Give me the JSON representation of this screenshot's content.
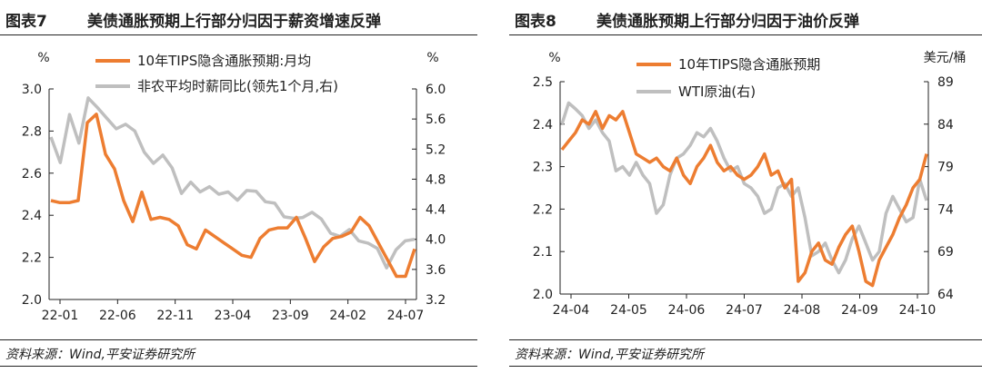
{
  "colors": {
    "orange": "#ED7D31",
    "gray": "#BFBFBF"
  },
  "source": "资料来源：Wind,平安证券研究所",
  "chart_data": [
    {
      "type": "line",
      "figure_label": "图表7",
      "title": "美债通胀预期上行部分归因于薪资增速反弹",
      "left_unit": "%",
      "right_unit": "%",
      "x_ticks": [
        "22-01",
        "22-06",
        "22-11",
        "23-04",
        "23-09",
        "24-02",
        "24-07"
      ],
      "y_left": {
        "min": 2.0,
        "max": 3.0,
        "ticks": [
          "2.0",
          "2.2",
          "2.4",
          "2.6",
          "2.8",
          "3.0"
        ]
      },
      "y_right": {
        "min": 3.2,
        "max": 6.0,
        "ticks": [
          "3.2",
          "3.6",
          "4.0",
          "4.4",
          "4.8",
          "5.2",
          "5.6",
          "6.0"
        ]
      },
      "series": [
        {
          "name": "10年TIPS隐含通胀预期:月均",
          "axis": "left",
          "color": "#ED7D31",
          "values": [
            2.47,
            2.46,
            2.46,
            2.47,
            2.84,
            2.88,
            2.69,
            2.62,
            2.47,
            2.37,
            2.51,
            2.38,
            2.39,
            2.38,
            2.35,
            2.26,
            2.24,
            2.33,
            2.3,
            2.27,
            2.24,
            2.21,
            2.2,
            2.29,
            2.33,
            2.34,
            2.34,
            2.39,
            2.29,
            2.18,
            2.25,
            2.29,
            2.3,
            2.32,
            2.39,
            2.35,
            2.27,
            2.19,
            2.11,
            2.11,
            2.24
          ]
        },
        {
          "name": "非农平均时薪同比(领先1个月,右)",
          "axis": "right",
          "color": "#BFBFBF",
          "values": [
            5.36,
            5.02,
            5.66,
            5.28,
            5.88,
            5.75,
            5.61,
            5.47,
            5.53,
            5.44,
            5.16,
            5.01,
            5.12,
            4.95,
            4.61,
            4.76,
            4.63,
            4.7,
            4.6,
            4.63,
            4.52,
            4.65,
            4.64,
            4.5,
            4.48,
            4.3,
            4.28,
            4.29,
            4.36,
            4.27,
            4.08,
            4.04,
            4.13,
            3.98,
            3.95,
            3.88,
            3.62,
            3.86,
            3.98,
            4.0
          ]
        }
      ],
      "legend": [
        "10年TIPS隐含通胀预期:月均",
        "非农平均时薪同比(领先1个月,右)"
      ]
    },
    {
      "type": "line",
      "figure_label": "图表8",
      "title": "美债通胀预期上行部分归因于油价反弹",
      "left_unit": "%",
      "right_unit": "美元/桶",
      "x_ticks": [
        "24-04",
        "24-05",
        "24-06",
        "24-07",
        "24-08",
        "24-09",
        "24-10"
      ],
      "y_left": {
        "min": 2.0,
        "max": 2.5,
        "ticks": [
          "2.0",
          "2.1",
          "2.2",
          "2.3",
          "2.4",
          "2.5"
        ]
      },
      "y_right": {
        "min": 64,
        "max": 89,
        "ticks": [
          "64",
          "69",
          "74",
          "79",
          "84",
          "89"
        ]
      },
      "series": [
        {
          "name": "10年TIPS隐含通胀预期",
          "axis": "left",
          "color": "#ED7D31",
          "values": [
            2.34,
            2.36,
            2.38,
            2.41,
            2.4,
            2.43,
            2.39,
            2.42,
            2.41,
            2.43,
            2.38,
            2.33,
            2.32,
            2.31,
            2.32,
            2.3,
            2.29,
            2.32,
            2.28,
            2.26,
            2.3,
            2.32,
            2.35,
            2.31,
            2.29,
            2.3,
            2.28,
            2.27,
            2.28,
            2.3,
            2.33,
            2.28,
            2.29,
            2.25,
            2.27,
            2.03,
            2.05,
            2.1,
            2.12,
            2.08,
            2.07,
            2.11,
            2.14,
            2.16,
            2.1,
            2.03,
            2.02,
            2.08,
            2.11,
            2.14,
            2.18,
            2.21,
            2.25,
            2.27,
            2.33
          ]
        },
        {
          "name": "WTI原油(右)",
          "axis": "right",
          "color": "#BFBFBF",
          "values": [
            84.0,
            86.5,
            85.8,
            85.0,
            83.5,
            84.5,
            83.0,
            82.0,
            78.5,
            79.0,
            78.0,
            79.5,
            78.0,
            77.0,
            73.5,
            74.5,
            78.0,
            80.0,
            80.5,
            81.5,
            83.0,
            82.5,
            83.5,
            82.0,
            80.0,
            78.5,
            79.0,
            77.0,
            76.5,
            75.5,
            73.5,
            74.0,
            76.5,
            77.0,
            75.5,
            76.5,
            73.0,
            68.5,
            69.0,
            70.0,
            68.0,
            66.5,
            68.0,
            70.5,
            72.0,
            70.0,
            68.0,
            69.0,
            73.5,
            75.5,
            74.0,
            72.5,
            73.0,
            77.5,
            75.0
          ]
        }
      ],
      "legend": [
        "10年TIPS隐含通胀预期",
        "WTI原油(右)"
      ]
    }
  ]
}
